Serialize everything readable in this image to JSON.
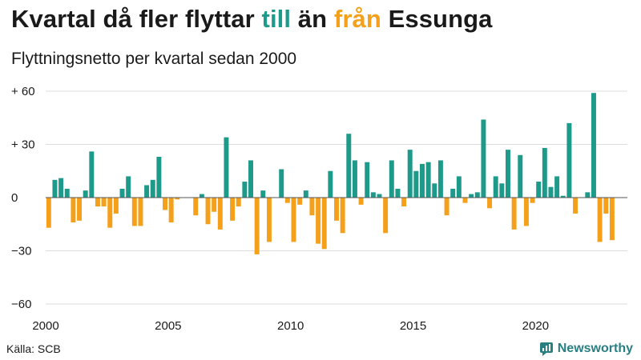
{
  "title": {
    "part1": "Kvartal då fler flyttar ",
    "till": "till",
    "part2": " än ",
    "fran": "från",
    "part3": " Essunga"
  },
  "source": "Källa: SCB",
  "brand": "Newsworthy",
  "colors": {
    "positive": "#1d9a8a",
    "negative": "#f5a01a",
    "grid": "#dddddd",
    "brand": "#2a7f83"
  },
  "chart_data": {
    "type": "bar",
    "title": "Kvartal då fler flyttar till än från Essunga",
    "subtitle": "Flyttningsnetto per kvartal sedan 2000",
    "xlabel": "",
    "ylabel": "",
    "x_start": 2000,
    "xlim": [
      2000,
      2023.75
    ],
    "ylim": [
      -60,
      60
    ],
    "y_ticks": [
      60,
      30,
      0,
      -30,
      -60
    ],
    "y_tick_labels": [
      "+ 60",
      "+ 30",
      "0",
      "−30",
      "−60"
    ],
    "x_ticks": [
      2000,
      2005,
      2010,
      2015,
      2020
    ],
    "x_tick_labels": [
      "2000",
      "2005",
      "2010",
      "2015",
      "2020"
    ],
    "grid": true,
    "values": [
      -17,
      10,
      11,
      5,
      -14,
      -13,
      4,
      26,
      -5,
      -5,
      -17,
      -9,
      5,
      12,
      -16,
      -16,
      7,
      10,
      23,
      -7,
      -14,
      -1,
      0,
      0,
      -10,
      2,
      -15,
      -8,
      -18,
      34,
      -13,
      -5,
      9,
      21,
      -32,
      4,
      -25,
      0,
      16,
      -3,
      -25,
      -4,
      4,
      -10,
      -26,
      -29,
      15,
      -13,
      -20,
      36,
      21,
      -4,
      20,
      3,
      2,
      -20,
      21,
      5,
      -5,
      27,
      15,
      19,
      20,
      8,
      21,
      -10,
      5,
      12,
      -3,
      2,
      3,
      44,
      -6,
      12,
      8,
      27,
      -18,
      24,
      -16,
      -3,
      9,
      28,
      6,
      12,
      1,
      42,
      -9,
      0,
      3,
      59,
      -25,
      -9,
      -24
    ]
  }
}
